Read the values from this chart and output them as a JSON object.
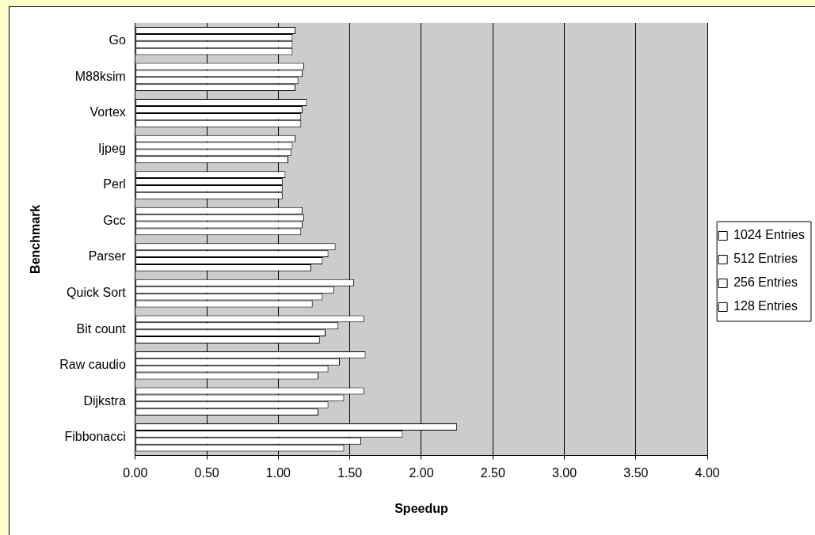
{
  "chart_data": {
    "type": "bar",
    "orientation": "horizontal",
    "xlabel": "Speedup",
    "ylabel": "Benchmark",
    "categories": [
      "Go",
      "M88ksim",
      "Vortex",
      "Ijpeg",
      "Perl",
      "Gcc",
      "Parser",
      "Quick Sort",
      "Bit count",
      "Raw caudio",
      "Dijkstra",
      "Fibbonacci"
    ],
    "series": [
      {
        "name": "1024 Entries",
        "color": "#ffffff",
        "values": [
          1.12,
          1.18,
          1.2,
          1.12,
          1.05,
          1.17,
          1.4,
          1.53,
          1.6,
          1.61,
          1.6,
          2.25
        ]
      },
      {
        "name": "512 Entries",
        "color": "#ffffff",
        "values": [
          1.1,
          1.17,
          1.17,
          1.1,
          1.03,
          1.18,
          1.35,
          1.39,
          1.42,
          1.43,
          1.46,
          1.87
        ]
      },
      {
        "name": "256 Entries",
        "color": "#ffffff",
        "values": [
          1.1,
          1.14,
          1.16,
          1.09,
          1.03,
          1.17,
          1.31,
          1.31,
          1.33,
          1.35,
          1.35,
          1.58
        ]
      },
      {
        "name": "128 Entries",
        "color": "#ffffff",
        "values": [
          1.1,
          1.12,
          1.16,
          1.07,
          1.03,
          1.16,
          1.23,
          1.24,
          1.29,
          1.28,
          1.28,
          1.46
        ]
      }
    ],
    "xlim": [
      0,
      4
    ],
    "xticks": [
      {
        "value": 0,
        "label": "0.00"
      },
      {
        "value": 0.5,
        "label": "0.50"
      },
      {
        "value": 1,
        "label": "1.00"
      },
      {
        "value": 1.5,
        "label": "1.50"
      },
      {
        "value": 2,
        "label": "2.00"
      },
      {
        "value": 2.5,
        "label": "2.50"
      },
      {
        "value": 3,
        "label": "3.00"
      },
      {
        "value": 3.5,
        "label": "3.50"
      },
      {
        "value": 4,
        "label": "4.00"
      }
    ],
    "grid": "x",
    "legend": "right"
  }
}
